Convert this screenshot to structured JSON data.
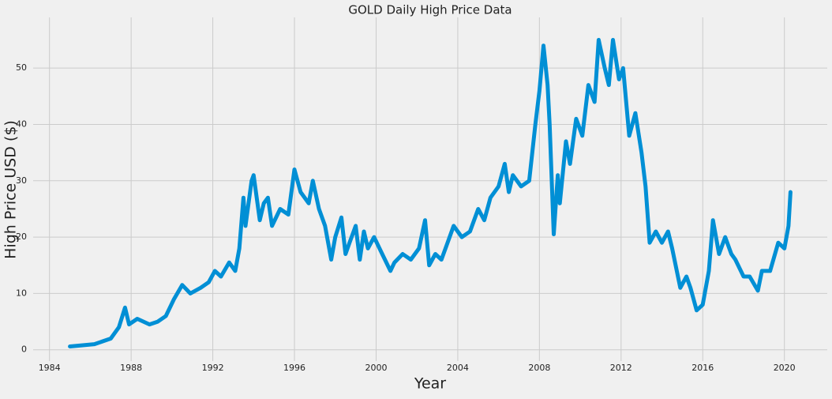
{
  "chart_data": {
    "type": "line",
    "title": "GOLD Daily High Price Data",
    "x_label": "Year",
    "y_label": "High Price USD ($)",
    "x": [
      1985.0,
      1986.2,
      1987.0,
      1987.4,
      1987.7,
      1987.9,
      1988.3,
      1988.9,
      1989.3,
      1989.7,
      1990.1,
      1990.5,
      1990.9,
      1991.4,
      1991.8,
      1992.1,
      1992.4,
      1992.8,
      1993.1,
      1993.3,
      1993.5,
      1993.6,
      1993.9,
      1994.0,
      1994.3,
      1994.5,
      1994.7,
      1994.9,
      1995.3,
      1995.7,
      1996.0,
      1996.3,
      1996.7,
      1996.9,
      1997.2,
      1997.5,
      1997.8,
      1998.0,
      1998.3,
      1998.5,
      1998.7,
      1999.0,
      1999.2,
      1999.4,
      1999.6,
      1999.9,
      2000.3,
      2000.7,
      2000.9,
      2001.3,
      2001.7,
      2002.1,
      2002.4,
      2002.6,
      2002.9,
      2003.2,
      2003.5,
      2003.8,
      2004.2,
      2004.6,
      2005.0,
      2005.3,
      2005.6,
      2006.0,
      2006.3,
      2006.5,
      2006.7,
      2007.1,
      2007.5,
      2007.8,
      2008.0,
      2008.2,
      2008.4,
      2008.5,
      2008.7,
      2008.9,
      2009.0,
      2009.3,
      2009.5,
      2009.8,
      2010.1,
      2010.4,
      2010.7,
      2010.9,
      2011.2,
      2011.4,
      2011.6,
      2011.9,
      2012.1,
      2012.4,
      2012.7,
      2013.0,
      2013.2,
      2013.4,
      2013.7,
      2014.0,
      2014.3,
      2014.5,
      2014.9,
      2015.2,
      2015.4,
      2015.7,
      2016.0,
      2016.3,
      2016.5,
      2016.8,
      2017.1,
      2017.4,
      2017.6,
      2018.0,
      2018.3,
      2018.7,
      2018.9,
      2019.3,
      2019.7,
      2020.0,
      2020.2,
      2020.3
    ],
    "values": [
      0.6,
      1.0,
      2.0,
      4,
      7.5,
      4.5,
      5.5,
      4.5,
      5,
      6,
      9,
      11.5,
      10,
      11,
      12,
      14,
      13,
      15.5,
      14,
      18,
      27,
      22,
      30,
      31,
      23,
      26,
      27,
      22,
      25,
      24,
      32,
      28,
      26,
      30,
      25,
      22,
      16,
      20,
      23.5,
      17,
      19,
      22,
      16,
      21,
      18,
      20,
      17,
      14,
      15.5,
      17,
      16,
      18,
      23,
      15,
      17,
      16,
      19,
      22,
      20,
      21,
      25,
      23,
      27,
      29,
      33,
      28,
      31,
      29,
      30,
      40,
      46,
      54,
      47,
      40,
      20.5,
      31,
      26,
      37,
      33,
      41,
      38,
      47,
      44,
      55,
      50,
      47,
      55,
      48,
      50,
      38,
      42,
      35,
      29,
      19,
      21,
      19,
      21,
      18,
      11,
      13,
      11,
      7,
      8,
      14,
      23,
      17,
      20,
      17,
      16,
      13,
      13,
      10.5,
      14,
      14,
      19,
      18,
      22,
      28
    ],
    "color": "#008fd5",
    "xlim": [
      1983.2,
      2022.1
    ],
    "xticks": [
      1984,
      1988,
      1992,
      1996,
      2000,
      2004,
      2008,
      2012,
      2016,
      2020
    ],
    "ylim": [
      -2,
      59
    ],
    "yticks": [
      0,
      10,
      20,
      30,
      40,
      50
    ],
    "grid": true
  }
}
